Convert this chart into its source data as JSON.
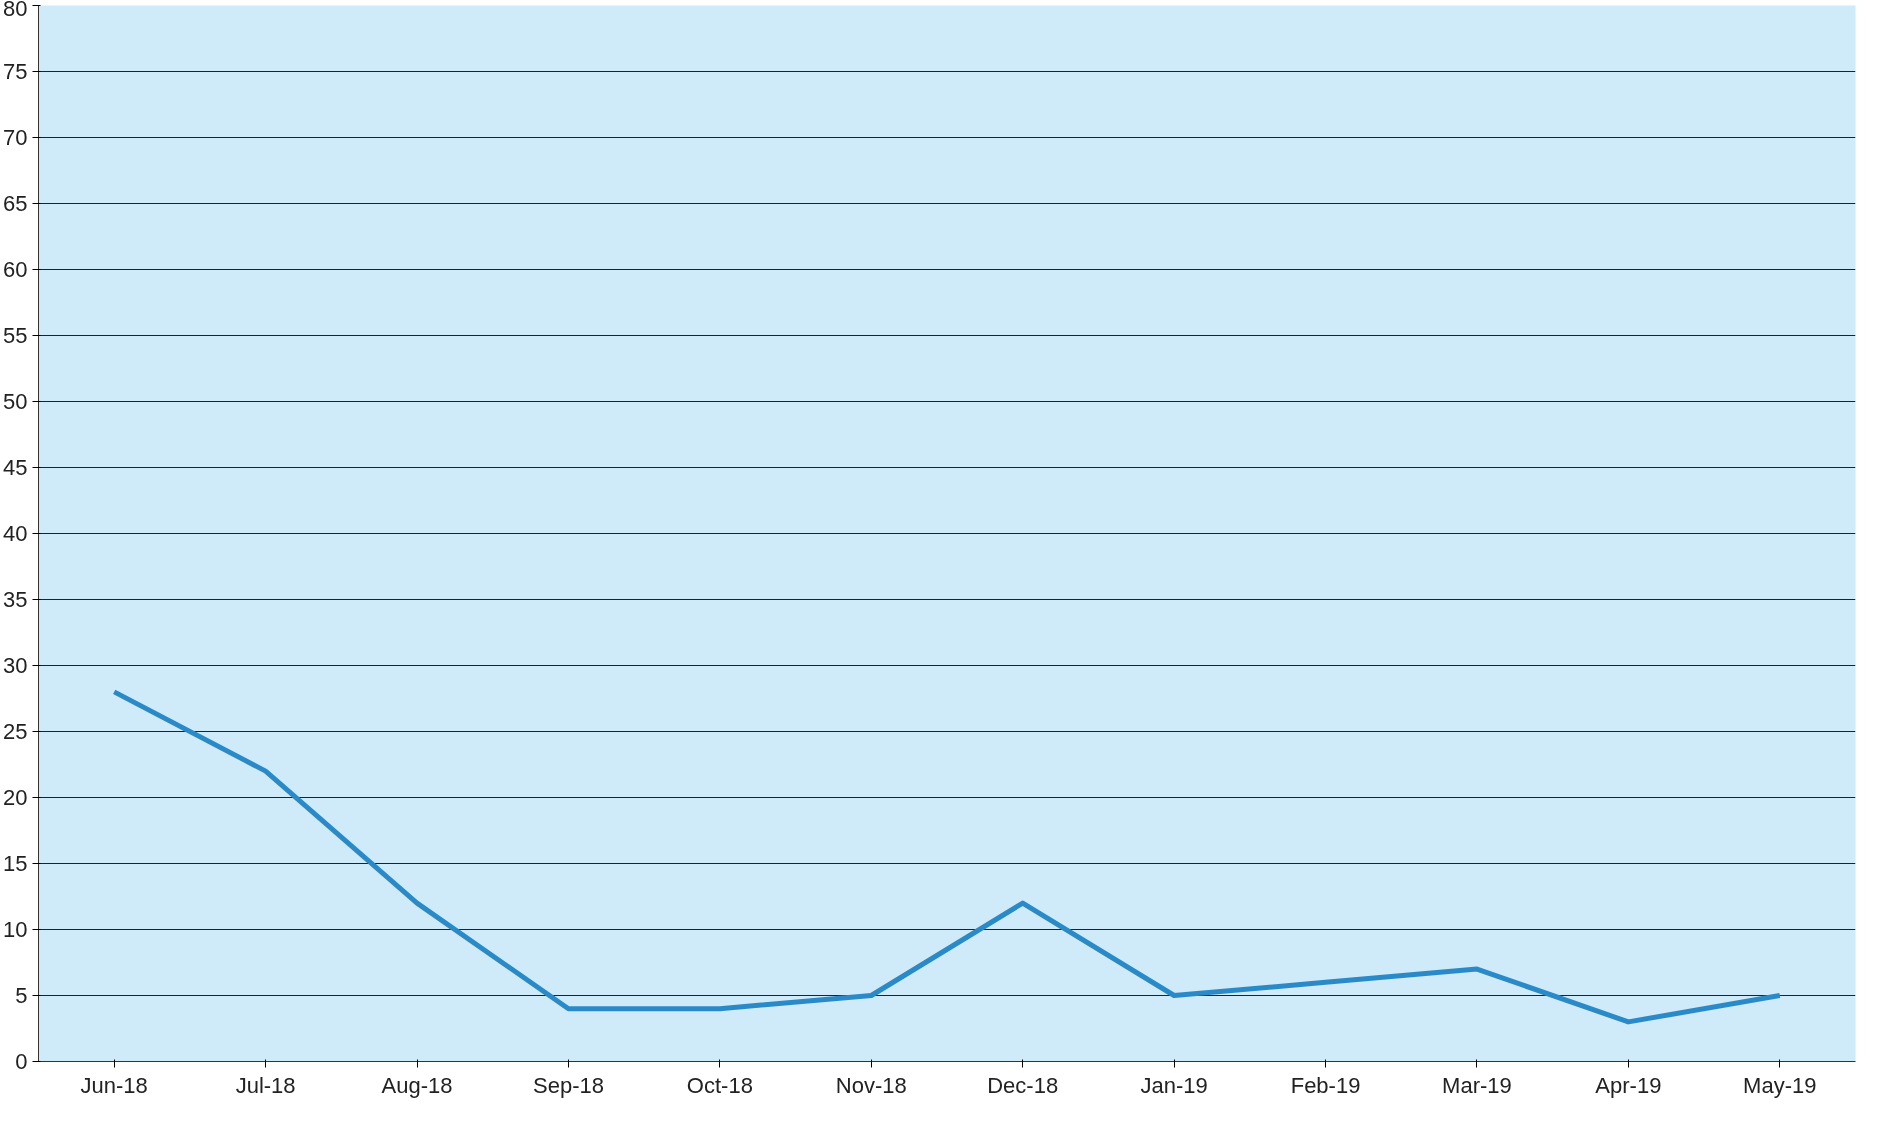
{
  "chart_data": {
    "type": "line",
    "categories": [
      "Jun-18",
      "Jul-18",
      "Aug-18",
      "Sep-18",
      "Oct-18",
      "Nov-18",
      "Dec-18",
      "Jan-19",
      "Feb-19",
      "Mar-19",
      "Apr-19",
      "May-19"
    ],
    "series": [
      {
        "color": "#2a8ac8",
        "values": [
          28,
          22,
          12,
          4,
          4,
          5,
          12,
          5,
          6,
          7,
          3,
          5
        ]
      }
    ],
    "ylim": [
      0,
      80
    ],
    "yticks": [
      0,
      5,
      10,
      15,
      20,
      25,
      30,
      35,
      40,
      45,
      50,
      55,
      60,
      65,
      70,
      75,
      80
    ],
    "grid": "y",
    "marker": "none",
    "line_style": "solid"
  }
}
